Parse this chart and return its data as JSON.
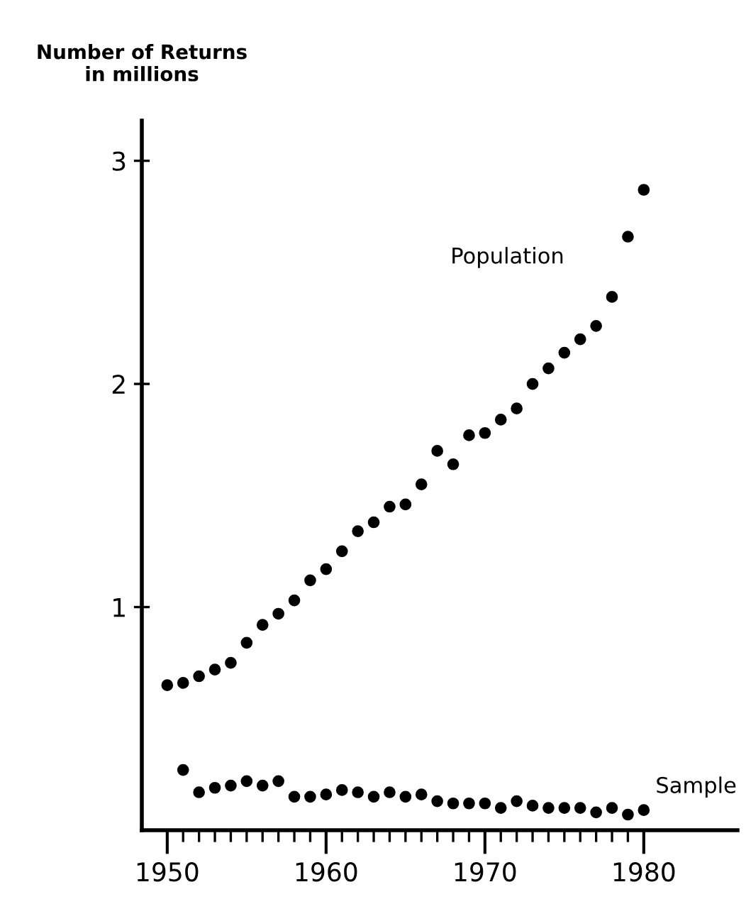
{
  "chart_data": {
    "type": "scatter",
    "ylabel": "Number of Returns\nin millions",
    "x": [
      1950,
      1951,
      1952,
      1953,
      1954,
      1955,
      1956,
      1957,
      1958,
      1959,
      1960,
      1961,
      1962,
      1963,
      1964,
      1965,
      1966,
      1967,
      1968,
      1969,
      1970,
      1971,
      1972,
      1973,
      1974,
      1975,
      1976,
      1977,
      1978,
      1979,
      1980
    ],
    "series": [
      {
        "name": "Population",
        "color": "#000000",
        "values": [
          0.65,
          0.66,
          0.69,
          0.72,
          0.75,
          0.84,
          0.92,
          0.97,
          1.03,
          1.12,
          1.17,
          1.25,
          1.34,
          1.38,
          1.45,
          1.46,
          1.55,
          1.7,
          1.64,
          1.77,
          1.78,
          1.84,
          1.89,
          2.0,
          2.07,
          2.14,
          2.2,
          2.26,
          2.39,
          2.66,
          2.87
        ]
      },
      {
        "name": "Sample",
        "color": "#000000",
        "values": [
          null,
          0.27,
          0.17,
          0.19,
          0.2,
          0.22,
          0.2,
          0.22,
          0.15,
          0.15,
          0.16,
          0.18,
          0.17,
          0.15,
          0.17,
          0.15,
          0.16,
          0.13,
          0.12,
          0.12,
          0.12,
          0.1,
          0.13,
          0.11,
          0.1,
          0.1,
          0.1,
          0.08,
          0.1,
          0.07,
          0.09
        ]
      }
    ],
    "xlim": [
      1948.4,
      1985.9
    ],
    "xticks": [
      1950,
      1960,
      1970,
      1980
    ],
    "ylim": [
      0,
      3.18
    ],
    "yticks": [
      1,
      2,
      3
    ],
    "marker": "circle",
    "grid": false,
    "legend": false
  }
}
